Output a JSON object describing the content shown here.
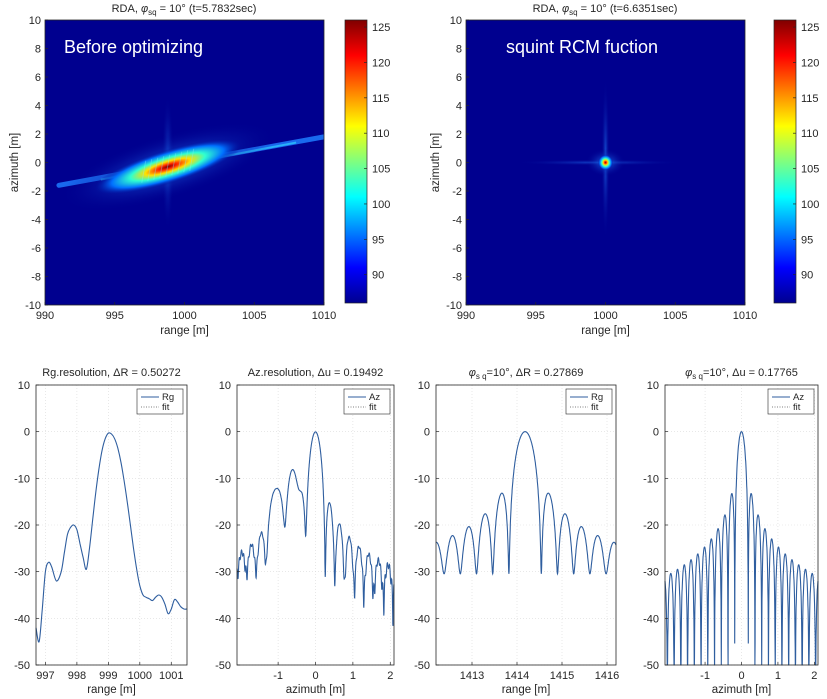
{
  "chart_data": [
    {
      "type": "heatmap",
      "title": "RDA, φsq = 10° (t=5.7832sec)",
      "title_parts": {
        "prefix": "RDA, ",
        "phi": "φ",
        "sub": "sq",
        "suffix": " = 10° (t=5.7832sec)"
      },
      "annotation": "Before optimizing",
      "xlabel": "range [m]",
      "ylabel": "azimuth [m]",
      "xlim": [
        990,
        1010
      ],
      "ylim": [
        -10,
        10
      ],
      "xticks": [
        990,
        995,
        1000,
        1005,
        1010
      ],
      "yticks": [
        -10,
        -8,
        -6,
        -4,
        -2,
        0,
        2,
        4,
        6,
        8,
        10
      ],
      "colorbar": {
        "clim": [
          86,
          126
        ],
        "ticks": [
          90,
          95,
          100,
          105,
          110,
          115,
          120,
          125
        ]
      },
      "background_color": "#00008f",
      "target": {
        "center": [
          998.8,
          -0.3
        ],
        "major_axis_m": 9,
        "minor_axis_m": 1.6,
        "tilt_deg": 17,
        "smear_range": [
          991,
          1010
        ]
      }
    },
    {
      "type": "heatmap",
      "title": "RDA, φsq = 10° (t=6.6351sec)",
      "title_parts": {
        "prefix": "RDA, ",
        "phi": "φ",
        "sub": "sq",
        "suffix": " = 10° (t=6.6351sec)"
      },
      "annotation": "squint RCM fuction",
      "xlabel": "range [m]",
      "ylabel": "azimuth [m]",
      "xlim": [
        990,
        1010
      ],
      "ylim": [
        -10,
        10
      ],
      "xticks": [
        990,
        995,
        1000,
        1005,
        1010
      ],
      "yticks": [
        -10,
        -8,
        -6,
        -4,
        -2,
        0,
        2,
        4,
        6,
        8,
        10
      ],
      "colorbar": {
        "clim": [
          86,
          126
        ],
        "ticks": [
          90,
          95,
          100,
          105,
          110,
          115,
          120,
          125
        ]
      },
      "background_color": "#00008f",
      "target": {
        "center": [
          1000,
          0
        ],
        "major_axis_m": 1.0,
        "minor_axis_m": 0.6,
        "tilt_deg": 0
      }
    },
    {
      "type": "line",
      "title": "Rg.resolution, ΔR = 0.50272",
      "xlabel": "range [m]",
      "ylabel": "",
      "xlim": [
        996.7,
        1001.5
      ],
      "ylim": [
        -50,
        10
      ],
      "xticks": [
        997,
        998,
        999,
        1000,
        1001
      ],
      "yticks": [
        -50,
        -40,
        -30,
        -20,
        -10,
        0,
        10
      ],
      "legend": {
        "entries": [
          "Rg",
          "fit"
        ],
        "position": "top-right"
      },
      "series": [
        {
          "name": "Rg",
          "color": "#2f5e9f",
          "x": [
            996.7,
            996.8,
            996.9,
            997.0,
            997.1,
            997.2,
            997.35,
            997.5,
            997.6,
            997.7,
            997.8,
            997.9,
            998.0,
            998.1,
            998.2,
            998.3,
            998.4,
            998.5,
            998.6,
            998.7,
            998.8,
            998.9,
            999.0,
            999.1,
            999.2,
            999.3,
            999.4,
            999.5,
            999.6,
            999.7,
            999.8,
            999.9,
            1000.0,
            1000.1,
            1000.2,
            1000.3,
            1000.4,
            1000.5,
            1000.6,
            1000.7,
            1000.8,
            1000.9,
            1001.0,
            1001.1,
            1001.2,
            1001.3,
            1001.4,
            1001.5
          ],
          "y": [
            -42,
            -45,
            -38,
            -30,
            -28,
            -29,
            -32,
            -30,
            -26,
            -22,
            -20.5,
            -20,
            -21,
            -24,
            -27,
            -29.5,
            -25,
            -19,
            -13,
            -8,
            -4,
            -1.5,
            -0.3,
            -0.5,
            -1.5,
            -3.5,
            -6.5,
            -10.5,
            -15,
            -20,
            -25,
            -29.5,
            -33,
            -35,
            -35.5,
            -35.8,
            -36.2,
            -35.5,
            -35,
            -35.5,
            -37,
            -39,
            -38,
            -36,
            -36.5,
            -37.5,
            -38,
            -38
          ]
        }
      ]
    },
    {
      "type": "line",
      "title": "Az.resolution, Δu = 0.19492",
      "xlabel": "azimuth [m]",
      "ylabel": "",
      "xlim": [
        -2.1,
        2.1
      ],
      "ylim": [
        -50,
        10
      ],
      "xticks": [
        -1,
        0,
        1,
        2
      ],
      "yticks": [
        -50,
        -40,
        -30,
        -20,
        -10,
        0,
        10
      ],
      "legend": {
        "entries": [
          "Az",
          "fit"
        ],
        "position": "top-right"
      },
      "series": [
        {
          "name": "Az",
          "color": "#2f5e9f",
          "formula": "sinc-squint"
        }
      ]
    },
    {
      "type": "line",
      "title": "φsq=10°, ΔR = 0.27869",
      "title_parts": {
        "phi": "φ",
        "sub": "s q",
        "suffix": "=10°,  ΔR = 0.27869"
      },
      "xlabel": "range [m]",
      "ylabel": "",
      "xlim": [
        1412.2,
        1416.2
      ],
      "ylim": [
        -50,
        10
      ],
      "xticks": [
        1413,
        1414,
        1415,
        1416
      ],
      "yticks": [
        -50,
        -40,
        -30,
        -20,
        -10,
        0,
        10
      ],
      "legend": {
        "entries": [
          "Rg",
          "fit"
        ],
        "position": "top-right"
      },
      "series": [
        {
          "name": "Rg",
          "color": "#2f5e9f",
          "formula": "sinc-range"
        }
      ]
    },
    {
      "type": "line",
      "title": "φsq=10°, Δu = 0.17765",
      "title_parts": {
        "phi": "φ",
        "sub": "s q",
        "suffix": "=10°,  Δu = 0.17765"
      },
      "xlabel": "azimuth [m]",
      "ylabel": "",
      "xlim": [
        -2.1,
        2.1
      ],
      "ylim": [
        -50,
        10
      ],
      "xticks": [
        -1,
        0,
        1,
        2
      ],
      "yticks": [
        -50,
        -40,
        -30,
        -20,
        -10,
        0,
        10
      ],
      "legend": {
        "entries": [
          "Az",
          "fit"
        ],
        "position": "top-right"
      },
      "series": [
        {
          "name": "Az",
          "color": "#2f5e9f",
          "formula": "sinc-fine"
        }
      ]
    }
  ]
}
